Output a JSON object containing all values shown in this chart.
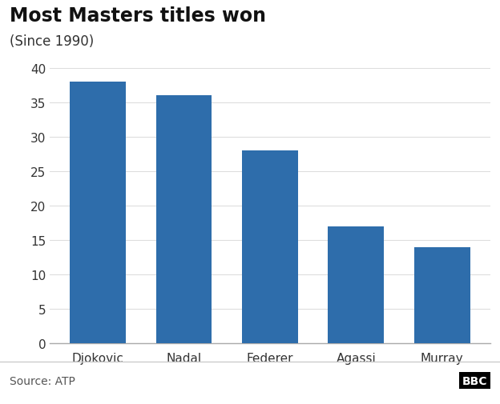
{
  "title": "Most Masters titles won",
  "subtitle": "(Since 1990)",
  "categories": [
    "Djokovic",
    "Nadal",
    "Federer",
    "Agassi",
    "Murray"
  ],
  "values": [
    38,
    36,
    28,
    17,
    14
  ],
  "bar_color": "#2e6dab",
  "ylim": [
    0,
    40
  ],
  "yticks": [
    0,
    5,
    10,
    15,
    20,
    25,
    30,
    35,
    40
  ],
  "source_text": "Source: ATP",
  "bbc_text": "BBC",
  "background_color": "#ffffff",
  "title_fontsize": 17,
  "subtitle_fontsize": 12,
  "tick_fontsize": 11,
  "source_fontsize": 10
}
